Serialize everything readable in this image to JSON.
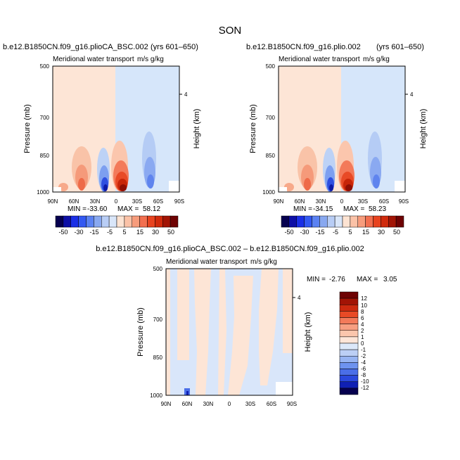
{
  "page_title": "SON",
  "chart_data": [
    {
      "type": "heatmap",
      "case": "b.e12.B1850CN.f09_g16.plioCA_BSC.002",
      "years": "(yrs 601–650)",
      "title": "Meridional water transport",
      "units": "m/s g/kg",
      "ylabel": "Pressure (mb)",
      "ylabel_right": "Height (km)",
      "xticks": [
        "90N",
        "60N",
        "30N",
        "0",
        "30S",
        "60S",
        "90S"
      ],
      "yticks": [
        "500",
        "700",
        "850",
        "1000"
      ],
      "right_ticks": [
        "4"
      ],
      "min_label": "MIN =",
      "min_value": "-33.60",
      "max_label": "MAX =",
      "max_value": "58.12",
      "colorbar_labels": [
        "-50",
        "-30",
        "-15",
        "-5",
        "5",
        "15",
        "30",
        "50"
      ]
    },
    {
      "type": "heatmap",
      "case": "b.e12.B1850CN.f09_g16.plio.002",
      "years": "(yrs 601–650)",
      "title": "Meridional water transport",
      "units": "m/s g/kg",
      "ylabel": "Pressure (mb)",
      "ylabel_right": "Height (km)",
      "xticks": [
        "90N",
        "60N",
        "30N",
        "0",
        "30S",
        "60S",
        "90S"
      ],
      "yticks": [
        "500",
        "700",
        "850",
        "1000"
      ],
      "right_ticks": [
        "4"
      ],
      "min_label": "MIN =",
      "min_value": "-34.15",
      "max_label": "MAX =",
      "max_value": "58.23",
      "colorbar_labels": [
        "-50",
        "-30",
        "-15",
        "-5",
        "5",
        "15",
        "30",
        "50"
      ]
    },
    {
      "type": "heatmap",
      "case": "b.e12.B1850CN.f09_g16.plioCA_BSC.002 – b.e12.B1850CN.f09_g16.plio.002",
      "title": "Meridional water transport",
      "units": "m/s g/kg",
      "ylabel": "Pressure (mb)",
      "ylabel_right": "Height (km)",
      "xticks": [
        "90N",
        "60N",
        "30N",
        "0",
        "30S",
        "60S",
        "90S"
      ],
      "yticks": [
        "500",
        "700",
        "850",
        "1000"
      ],
      "right_ticks": [
        "4"
      ],
      "min_label": "MIN =",
      "min_value": "-2.76",
      "max_label": "MAX =",
      "max_value": "3.05",
      "colorbar_labels": [
        "12",
        "10",
        "8",
        "6",
        "4",
        "2",
        "1",
        "0",
        "-1",
        "-2",
        "-4",
        "-6",
        "-8",
        "-10",
        "-12"
      ]
    }
  ],
  "colors": {
    "horizontal_scale": [
      "#06004f",
      "#0d0fa6",
      "#1a2fe6",
      "#3359f2",
      "#5b82f2",
      "#88a8f0",
      "#b8cdf5",
      "#d9e6f9",
      "#fde3d2",
      "#fbc2a7",
      "#f79c7c",
      "#f26f4f",
      "#e8431f",
      "#d02a0c",
      "#a21405",
      "#6e0203"
    ],
    "vertical_scale": [
      "#6e0203",
      "#a21405",
      "#cc2a0f",
      "#e84a26",
      "#f37a5a",
      "#f79f82",
      "#fbc6ad",
      "#fde5d8",
      "#dce8fa",
      "#bccff5",
      "#97b4f2",
      "#6e93ef",
      "#4a6ee8",
      "#2a48dd",
      "#1020b4",
      "#06004f"
    ],
    "neg_light": "#d6e6fa",
    "pos_light": "#fde5d6"
  }
}
